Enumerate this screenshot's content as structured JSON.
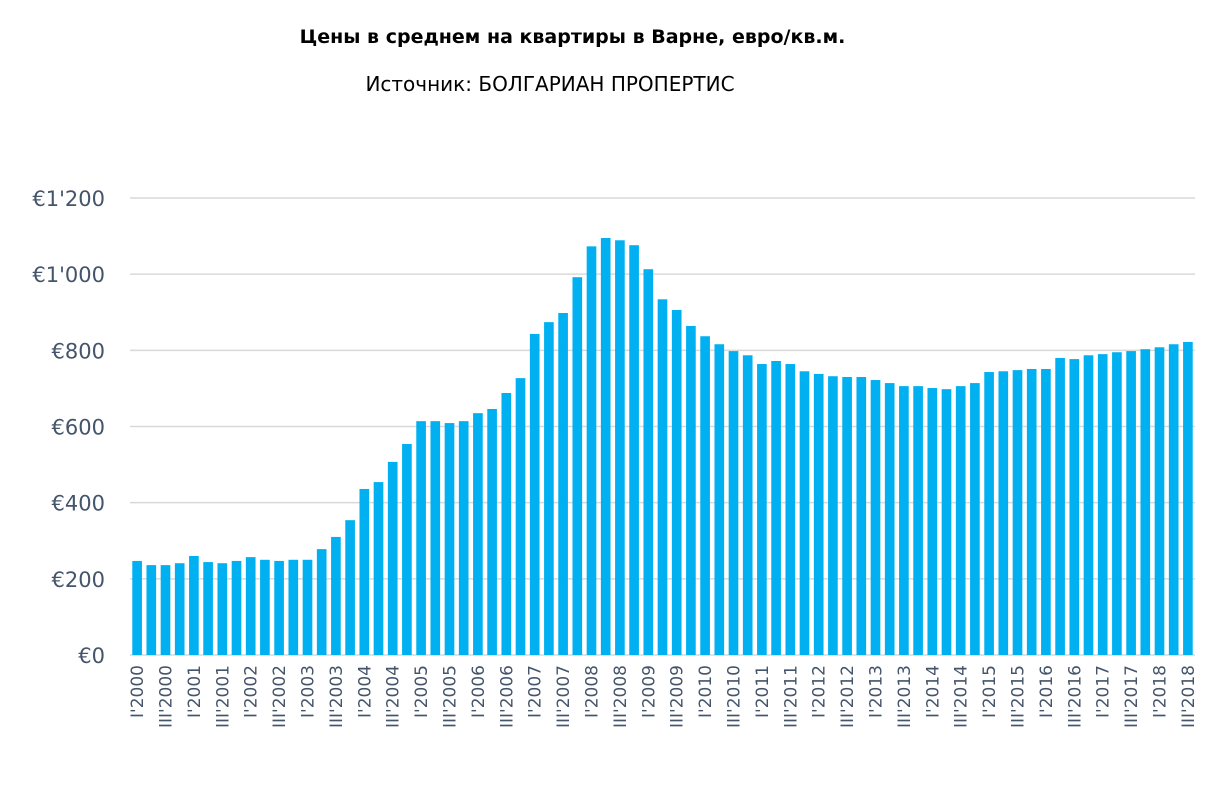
{
  "chart_data": {
    "type": "bar",
    "title": "Цены в среднем на квартиры в Варне, евро/кв.м.",
    "subtitle": "Источник: БОЛГАРИАН ПРОПЕРТИС",
    "xlabel": "",
    "ylabel": "",
    "ylim": [
      0,
      1200
    ],
    "yticks": [
      0,
      200,
      400,
      600,
      800,
      1000,
      1200
    ],
    "ytick_labels": [
      "€0",
      "€200",
      "€400",
      "€600",
      "€800",
      "€1'000",
      "€1'200"
    ],
    "grid": true,
    "bar_color": "#00b0f0",
    "categories": [
      "I'2000",
      "II'2000",
      "III'2000",
      "IV'2000",
      "I'2001",
      "II'2001",
      "III'2001",
      "IV'2001",
      "I'2002",
      "II'2002",
      "III'2002",
      "IV'2002",
      "I'2003",
      "II'2003",
      "III'2003",
      "IV'2003",
      "I'2004",
      "II'2004",
      "III'2004",
      "IV'2004",
      "I'2005",
      "II'2005",
      "III'2005",
      "IV'2005",
      "I'2006",
      "II'2006",
      "III'2006",
      "IV'2006",
      "I'2007",
      "II'2007",
      "III'2007",
      "IV'2007",
      "I'2008",
      "II'2008",
      "III'2008",
      "IV'2008",
      "I'2009",
      "II'2009",
      "III'2009",
      "IV'2009",
      "I'2010",
      "II'2010",
      "III'2010",
      "IV'2010",
      "I'2011",
      "II'2011",
      "III'2011",
      "IV'2011",
      "I'2012",
      "II'2012",
      "III'2012",
      "IV'2012",
      "I'2013",
      "II'2013",
      "III'2013",
      "IV'2013",
      "I'2014",
      "II'2014",
      "III'2014",
      "IV'2014",
      "I'2015",
      "II'2015",
      "III'2015",
      "IV'2015",
      "I'2016",
      "II'2016",
      "III'2016",
      "IV'2016",
      "I'2017",
      "II'2017",
      "III'2017",
      "IV'2017",
      "I'2018",
      "II'2018",
      "III'2018"
    ],
    "shown_tick_labels": [
      "I'2000",
      "III'2000",
      "I'2001",
      "III'2001",
      "I'2002",
      "III'2002",
      "I'2003",
      "III'2003",
      "I'2004",
      "III'2004",
      "I'2005",
      "III'2005",
      "I'2006",
      "III'2006",
      "I'2007",
      "III'2007",
      "I'2008",
      "III'2008",
      "I'2009",
      "III'2009",
      "I'2010",
      "III'2010",
      "I'2011",
      "III'2011",
      "I'2012",
      "III'2012",
      "I'2013",
      "III'2013",
      "I'2014",
      "III'2014",
      "I'2015",
      "III'2015",
      "I'2016",
      "III'2016",
      "I'2017",
      "III'2017",
      "I'2018",
      "III'2018"
    ],
    "values": [
      247,
      236,
      236,
      241,
      260,
      244,
      241,
      247,
      257,
      250,
      247,
      250,
      250,
      278,
      310,
      354,
      436,
      454,
      507,
      554,
      614,
      614,
      609,
      614,
      635,
      646,
      688,
      727,
      843,
      874,
      898,
      992,
      1073,
      1095,
      1089,
      1076,
      1013,
      934,
      906,
      864,
      837,
      816,
      798,
      787,
      764,
      772,
      764,
      745,
      738,
      732,
      730,
      730,
      722,
      714,
      706,
      706,
      701,
      698,
      706,
      714,
      743,
      745,
      748,
      751,
      751,
      780,
      777,
      787,
      790,
      795,
      798,
      803,
      808,
      816,
      822
    ]
  }
}
